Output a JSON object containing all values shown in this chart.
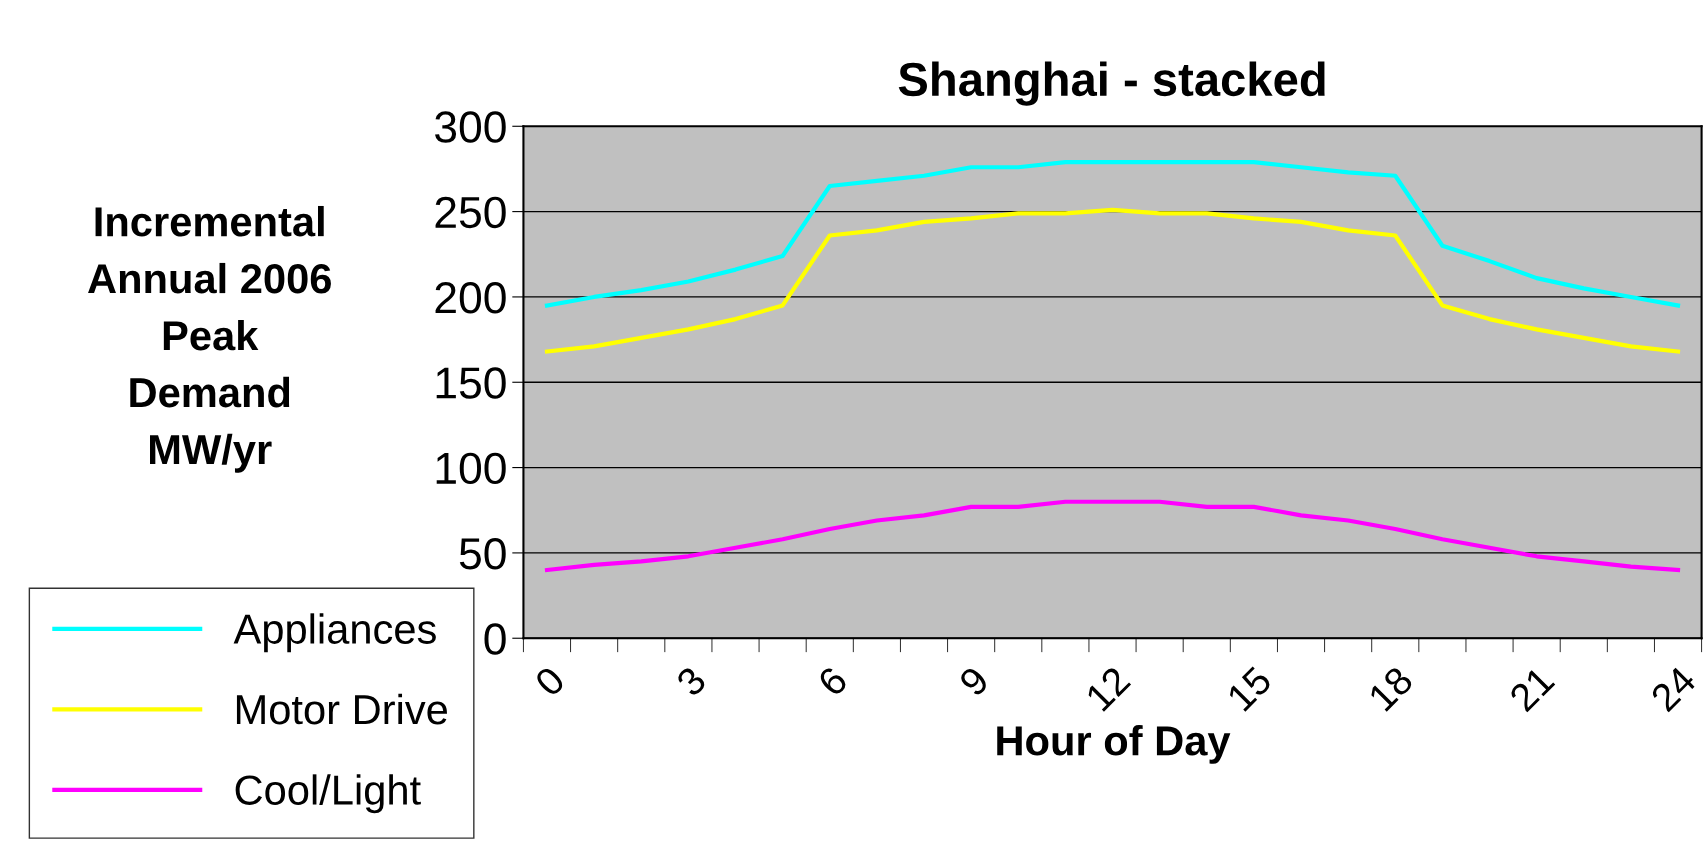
{
  "chart_data": {
    "type": "line",
    "title": "Shanghai - stacked",
    "xlabel": "Hour of Day",
    "ylabel": "Incremental\nAnnual 2006\nPeak\nDemand\nMW/yr",
    "categories": [
      "0",
      null,
      null,
      "3",
      null,
      null,
      "6",
      null,
      null,
      "9",
      null,
      null,
      "12",
      null,
      null,
      "15",
      null,
      null,
      "18",
      null,
      null,
      "21",
      null,
      null,
      "24"
    ],
    "series": [
      {
        "name": "Appliances",
        "color": "#00ffff",
        "values": [
          195,
          200,
          204,
          209,
          216,
          224,
          265,
          268,
          271,
          276,
          276,
          279,
          279,
          279,
          279,
          279,
          276,
          273,
          271,
          230,
          221,
          211,
          205,
          200,
          195
        ]
      },
      {
        "name": "Motor Drive",
        "color": "#ffff00",
        "values": [
          168,
          171,
          176,
          181,
          187,
          195,
          236,
          239,
          244,
          246,
          249,
          249,
          251,
          249,
          249,
          246,
          244,
          239,
          236,
          195,
          187,
          181,
          176,
          171,
          168
        ]
      },
      {
        "name": "Cool/Light",
        "color": "#ff00ff",
        "values": [
          40,
          43,
          45,
          48,
          53,
          58,
          64,
          69,
          72,
          77,
          77,
          80,
          80,
          80,
          77,
          77,
          72,
          69,
          64,
          58,
          53,
          48,
          45,
          42,
          40
        ]
      }
    ],
    "ylim": [
      0,
      300
    ],
    "yticks": [
      0,
      50,
      100,
      150,
      200,
      250,
      300
    ],
    "grid": "y",
    "legend": "bottom left",
    "marker": "none",
    "line_style": "solid"
  }
}
